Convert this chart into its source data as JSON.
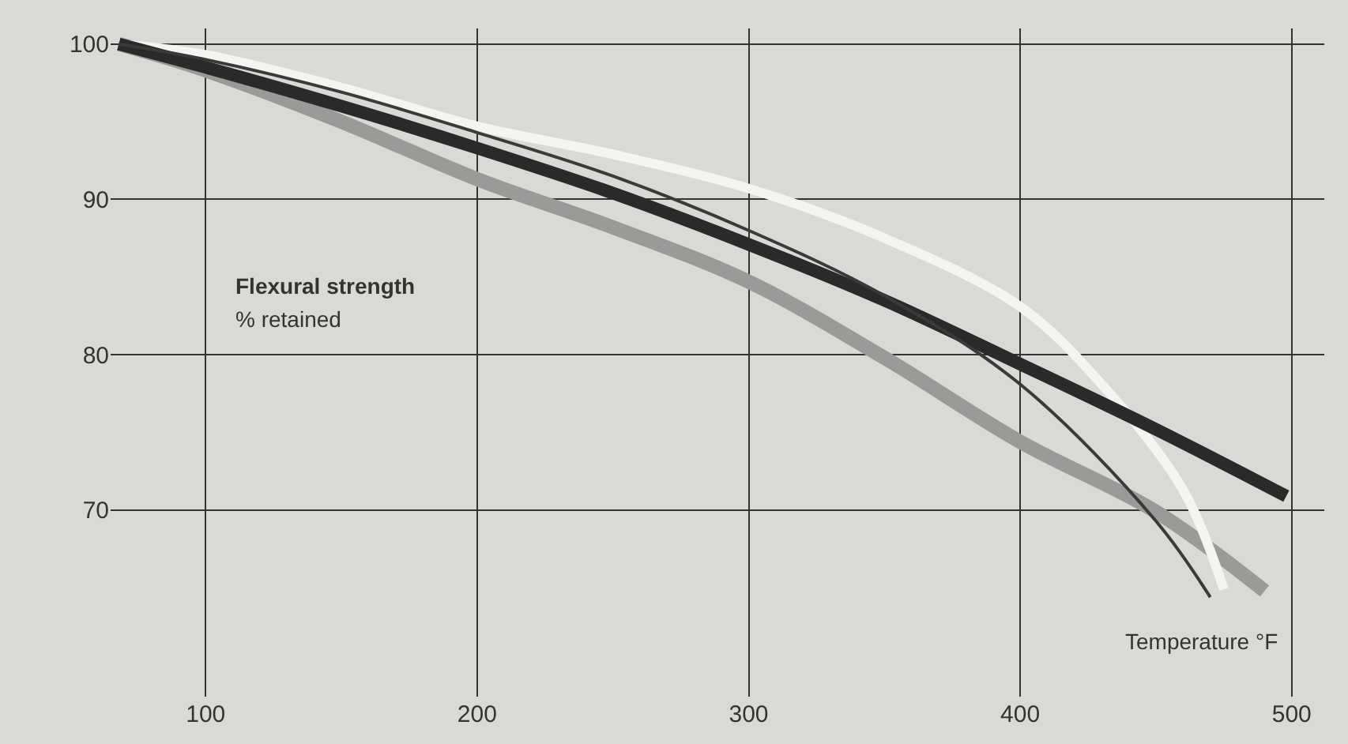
{
  "chart_data": {
    "type": "line",
    "xlabel": "Temperature °F",
    "annotations": [
      "Flexural strength",
      "% retained"
    ],
    "series": [
      {
        "color": "#9a9a98",
        "x": [
          68,
          100,
          150,
          200,
          250,
          300,
          350,
          400,
          450,
          490
        ],
        "values": [
          100,
          98.3,
          95,
          91.3,
          88.2,
          84.7,
          79.8,
          74.4,
          69.9,
          64.8
        ]
      },
      {
        "color": "#f4f4f0",
        "x": [
          68,
          100,
          150,
          200,
          250,
          300,
          350,
          400,
          430,
          460,
          475
        ],
        "values": [
          100,
          99.3,
          97.2,
          94.7,
          92.9,
          90.7,
          87.5,
          83.1,
          78.1,
          71.3,
          64.9
        ]
      },
      {
        "color": "#2a2a2a",
        "x": [
          68,
          100,
          150,
          200,
          250,
          300,
          350,
          400,
          450,
          498
        ],
        "values": [
          100,
          98.5,
          96,
          93.3,
          90.4,
          87.1,
          83.5,
          79.4,
          75.2,
          70.9
        ]
      },
      {
        "color": "#3a3a3a",
        "x": [
          68,
          100,
          150,
          200,
          250,
          300,
          350,
          400,
          450,
          470
        ],
        "values": [
          100,
          99,
          96.9,
          94.3,
          91.5,
          88,
          83.8,
          78.1,
          69.3,
          64.4
        ]
      }
    ],
    "xlim": [
      65,
      512
    ],
    "ylim": [
      58,
      101
    ],
    "xticks": [
      100,
      200,
      300,
      400,
      500
    ],
    "yticks": [
      70,
      80,
      90,
      100
    ],
    "grid": true
  }
}
